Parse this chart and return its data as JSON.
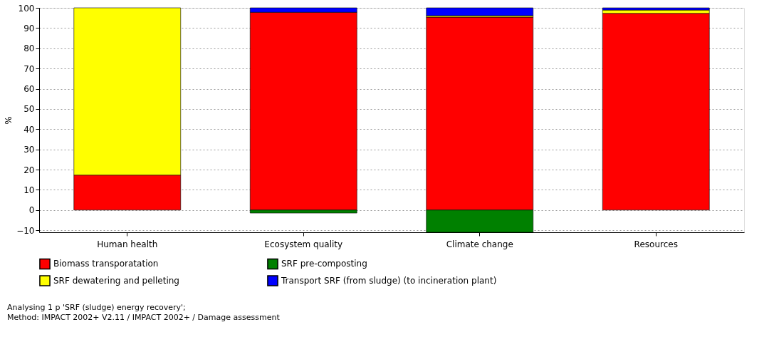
{
  "chart_data": {
    "type": "bar",
    "stacked": true,
    "ylabel": "%",
    "categories": [
      "Human health",
      "Ecosystem quality",
      "Climate change",
      "Resources"
    ],
    "series": [
      {
        "name": "Biomass transporatation",
        "color": "#ff0000",
        "values": [
          17.3,
          97.8,
          95.4,
          97.3
        ]
      },
      {
        "name": "SRF pre-composting",
        "color": "#008000",
        "values": [
          null,
          -1.5,
          -11,
          null
        ]
      },
      {
        "name": "SRF dewatering and pelleting",
        "color": "#ffff00",
        "values": [
          82.7,
          null,
          0.7,
          1.6
        ]
      },
      {
        "name": "Transport SRF (from sludge) (to incineration plant)",
        "color": "#0000ff",
        "values": [
          null,
          2.2,
          3.9,
          1.1
        ]
      }
    ],
    "ylim": [
      -11,
      100
    ],
    "yticks": [
      -10,
      0,
      10,
      20,
      30,
      40,
      50,
      60,
      70,
      80,
      90,
      100
    ],
    "grid": "y",
    "legend": "bottom",
    "annotations": [
      "Analysing 1 p 'SRF (sludge) energy recovery';",
      "Method: IMPACT 2002+ V2.11 / IMPACT 2002+ / Damage assessment"
    ]
  }
}
